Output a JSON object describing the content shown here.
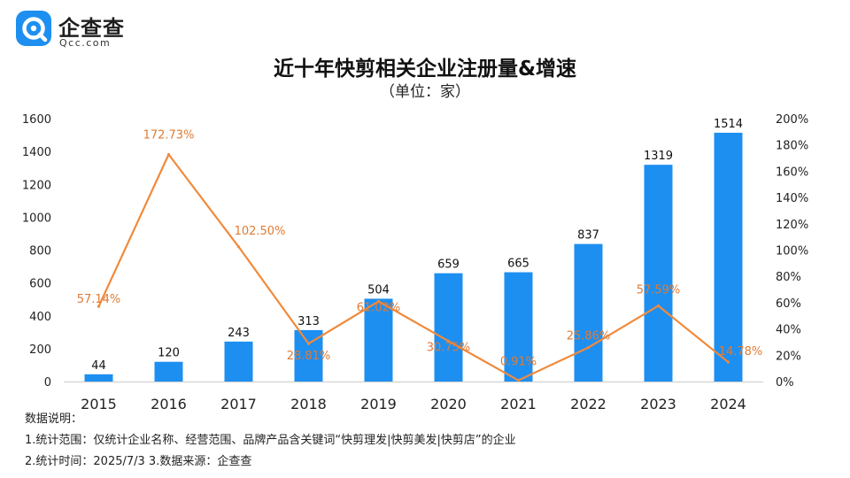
{
  "brand": {
    "name": "企查查",
    "domain": "Qcc.com",
    "color": "#1d8ff1"
  },
  "chart_data": {
    "type": "bar",
    "title": "近十年快剪相关企业注册量&增速",
    "subtitle": "（单位：家）",
    "categories": [
      "2015",
      "2016",
      "2017",
      "2018",
      "2019",
      "2020",
      "2021",
      "2022",
      "2023",
      "2024"
    ],
    "series": [
      {
        "values": [
          44,
          120,
          243,
          313,
          504,
          659,
          665,
          837,
          1319,
          1514
        ],
        "color": "#1d8ff1",
        "kind": "bar",
        "axis": "left"
      },
      {
        "values": [
          57.14,
          172.73,
          102.5,
          28.81,
          61.02,
          30.75,
          0.91,
          25.86,
          57.59,
          14.78
        ],
        "color": "#f08a3c",
        "kind": "line",
        "axis": "right"
      }
    ],
    "bar_labels": [
      "44",
      "120",
      "243",
      "313",
      "504",
      "659",
      "665",
      "837",
      "1319",
      "1514"
    ],
    "line_labels": [
      "57.14%",
      "172.73%",
      "102.50%",
      "28.81%",
      "61.02%",
      "30.75%",
      "0.91%",
      "25.86%",
      "57.59%",
      "14.78%"
    ],
    "y_left": {
      "min": 0,
      "max": 1600,
      "step": 200
    },
    "y_right": {
      "min": 0,
      "max": 200,
      "step": 20,
      "suffix": "%"
    },
    "y_left_ticks": [
      "0",
      "200",
      "400",
      "600",
      "800",
      "1000",
      "1200",
      "1400",
      "1600"
    ],
    "y_right_ticks": [
      "0%",
      "20%",
      "40%",
      "60%",
      "80%",
      "100%",
      "120%",
      "140%",
      "160%",
      "180%",
      "200%"
    ],
    "grid": false,
    "legend": "none"
  },
  "notes": {
    "heading": "数据说明：",
    "line1": "1.统计范围：仅统计企业名称、经营范围、品牌产品含关键词“快剪理发|快剪美发|快剪店”的企业",
    "line2": "2.统计时间：2025/7/3  3.数据来源：企查查"
  }
}
